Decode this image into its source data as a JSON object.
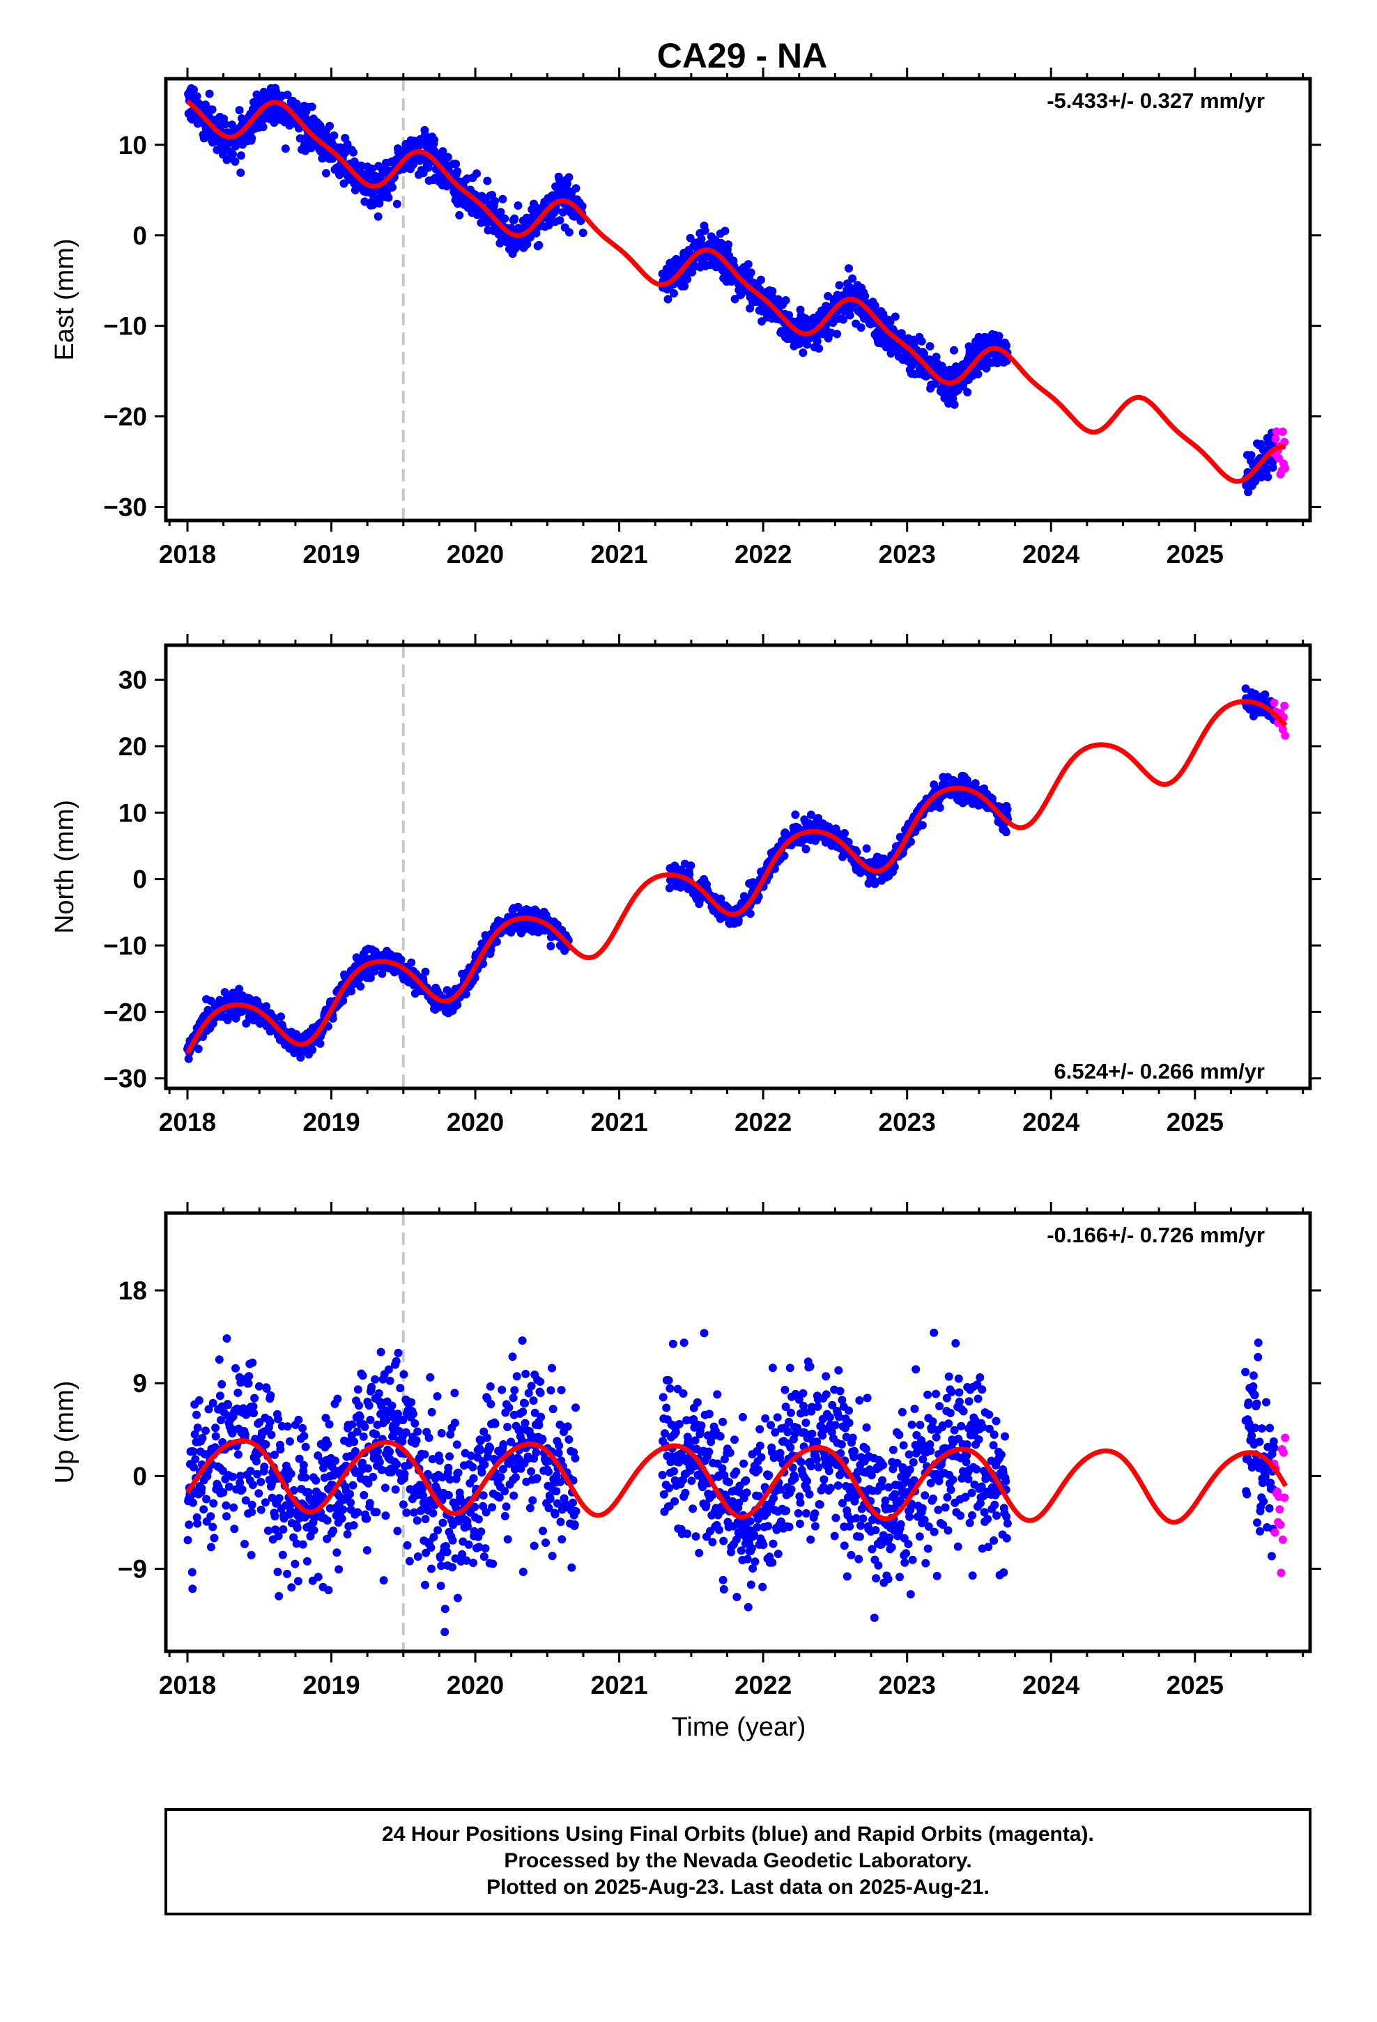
{
  "title": "CA29 - NA",
  "footer": {
    "lines": [
      "24 Hour Positions Using Final Orbits (blue) and Rapid Orbits (magenta).",
      "Processed by the Nevada Geodetic Laboratory.",
      "Plotted on 2025-Aug-23. Last data on 2025-Aug-21."
    ]
  },
  "colors": {
    "final": "#0000ff",
    "rapid": "#ff00ff",
    "model": "#ff0000",
    "event": "#c8c8c8"
  },
  "chart_data": [
    {
      "type": "scatter",
      "ylabel": "East (mm)",
      "xlabel": "",
      "rate_label": "-5.433+/- 0.327 mm/yr",
      "rate_position": "top-right",
      "x_ticks": [
        "2018",
        "2019",
        "2020",
        "2021",
        "2022",
        "2023",
        "2024",
        "2025"
      ],
      "y_ticks": [
        10,
        0,
        -10,
        -20,
        -30
      ],
      "xlim": [
        2017.85,
        2025.8
      ],
      "ylim": [
        -31.5,
        17.3
      ],
      "event_line_x": 2019.5,
      "rate_mm_per_yr": -5.433,
      "offset_2018": 15.2,
      "seasonal": {
        "amp_sin": -2.4,
        "amp_cos": -0.8,
        "amp_sin2": 0.6,
        "amp_cos2": 0.4
      },
      "noise_sd": 1.1,
      "final_segments": [
        [
          2018.0,
          2020.75
        ],
        [
          2021.3,
          2023.7
        ],
        [
          2025.35,
          2025.55
        ]
      ],
      "rapid_segment": [
        2025.55,
        2025.63
      ]
    },
    {
      "type": "scatter",
      "ylabel": "North (mm)",
      "xlabel": "",
      "rate_label": "6.524+/- 0.266 mm/yr",
      "rate_position": "bottom-right",
      "x_ticks": [
        "2018",
        "2019",
        "2020",
        "2021",
        "2022",
        "2023",
        "2024",
        "2025"
      ],
      "y_ticks": [
        30,
        20,
        10,
        0,
        -10,
        -20,
        -30
      ],
      "xlim": [
        2017.85,
        2025.8
      ],
      "ylim": [
        -31.5,
        35.2
      ],
      "event_line_x": 2019.5,
      "rate_mm_per_yr": 6.524,
      "offset_2018": -25.0,
      "seasonal": {
        "amp_sin": 4.3,
        "amp_cos": -1.5,
        "amp_sin2": 0.5,
        "amp_cos2": 0.3
      },
      "noise_sd": 0.9,
      "final_segments": [
        [
          2018.0,
          2020.65
        ],
        [
          2021.35,
          2023.7
        ],
        [
          2025.35,
          2025.55
        ]
      ],
      "rapid_segment": [
        2025.55,
        2025.63
      ]
    },
    {
      "type": "scatter",
      "ylabel": "Up (mm)",
      "xlabel": "Time (year)",
      "rate_label": "-0.166+/- 0.726 mm/yr",
      "rate_position": "top-right",
      "x_ticks": [
        "2018",
        "2019",
        "2020",
        "2021",
        "2022",
        "2023",
        "2024",
        "2025"
      ],
      "y_ticks": [
        18,
        9,
        0,
        -9
      ],
      "xlim": [
        2017.85,
        2025.8
      ],
      "ylim": [
        -17,
        25.5
      ],
      "event_line_x": 2019.5,
      "rate_mm_per_yr": -0.166,
      "offset_2018": 0.4,
      "seasonal": {
        "amp_sin": 2.6,
        "amp_cos": -2.2,
        "amp_sin2": 0.3,
        "amp_cos2": 0.2
      },
      "noise_sd": 3.9,
      "final_segments": [
        [
          2018.0,
          2020.7
        ],
        [
          2021.3,
          2023.7
        ],
        [
          2025.35,
          2025.55
        ]
      ],
      "rapid_segment": [
        2025.55,
        2025.63
      ]
    }
  ]
}
